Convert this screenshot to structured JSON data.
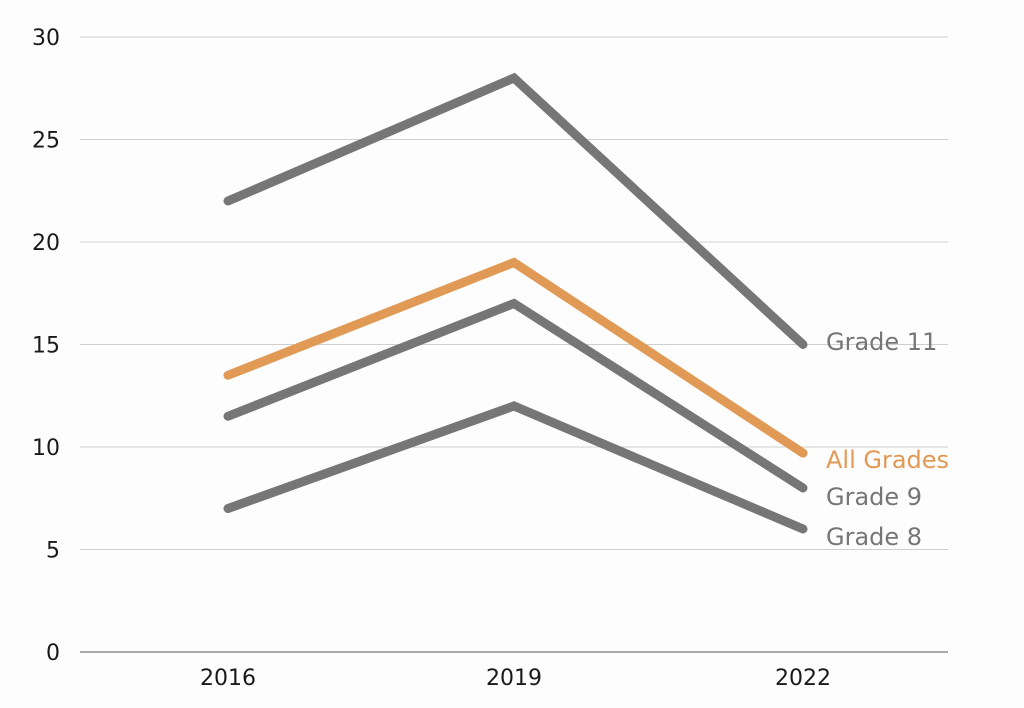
{
  "chart_data": {
    "type": "line",
    "title": "",
    "xlabel": "",
    "ylabel": "",
    "x": [
      "2016",
      "2019",
      "2022"
    ],
    "ylim": [
      0,
      30
    ],
    "yticks": [
      0,
      5,
      10,
      15,
      20,
      25,
      30
    ],
    "grid": true,
    "legend": "direct labels at line ends (right)",
    "series": [
      {
        "name": "Grade 11",
        "label": "Grade 11",
        "values": [
          22,
          28,
          15
        ],
        "color": "#767676"
      },
      {
        "name": "All Grades",
        "label": "All Grades",
        "values": [
          13.5,
          19,
          9.7
        ],
        "color": "#E09A55"
      },
      {
        "name": "Grade 9",
        "label": "Grade 9",
        "values": [
          11.5,
          17,
          8
        ],
        "color": "#767676"
      },
      {
        "name": "Grade 8",
        "label": "Grade 8",
        "values": [
          7,
          12,
          6
        ],
        "color": "#767676"
      }
    ]
  }
}
